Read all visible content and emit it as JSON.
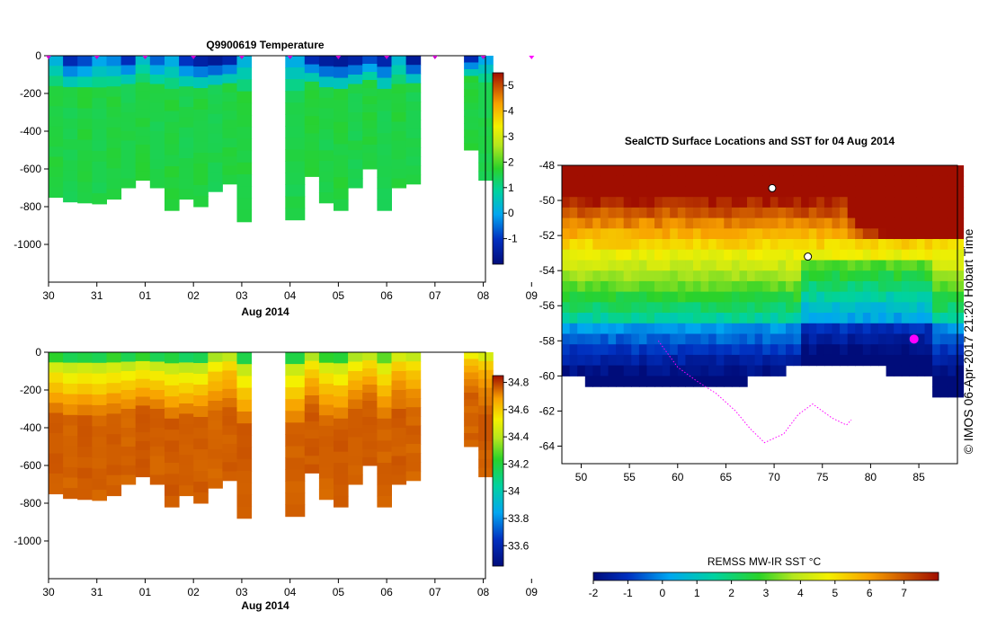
{
  "chart_data": [
    {
      "type": "heatmap",
      "title": "Q9900619  Temperature",
      "xlabel": "Aug 2014",
      "x_ticks": [
        "30",
        "31",
        "01",
        "02",
        "03",
        "04",
        "05",
        "06",
        "07",
        "08",
        "09"
      ],
      "y_ticks": [
        "0",
        "-200",
        "-400",
        "-600",
        "-800",
        "-1000"
      ],
      "ylim": [
        -1200,
        0
      ],
      "colorbar": {
        "min": -2,
        "max": 5.5,
        "ticks": [
          "-1",
          "0",
          "1",
          "2",
          "3",
          "4",
          "5"
        ]
      },
      "profiles": [
        {
          "day": 0.0,
          "bottom": -750,
          "top_temp": 0.2,
          "deep_temp": 1.6
        },
        {
          "day": 0.3,
          "bottom": -775,
          "top_temp": -1.2,
          "deep_temp": 1.5
        },
        {
          "day": 0.6,
          "bottom": -780,
          "top_temp": -0.8,
          "deep_temp": 1.6
        },
        {
          "day": 0.9,
          "bottom": -785,
          "top_temp": 0.0,
          "deep_temp": 1.5
        },
        {
          "day": 1.2,
          "bottom": -760,
          "top_temp": -0.3,
          "deep_temp": 1.6
        },
        {
          "day": 1.5,
          "bottom": -700,
          "top_temp": -1.1,
          "deep_temp": 1.5
        },
        {
          "day": 1.8,
          "bottom": -660,
          "top_temp": 0.4,
          "deep_temp": 1.6
        },
        {
          "day": 2.1,
          "bottom": -700,
          "top_temp": -0.6,
          "deep_temp": 1.5
        },
        {
          "day": 2.4,
          "bottom": -820,
          "top_temp": 0.1,
          "deep_temp": 1.6
        },
        {
          "day": 2.7,
          "bottom": -760,
          "top_temp": -1.0,
          "deep_temp": 1.5
        },
        {
          "day": 3.0,
          "bottom": -800,
          "top_temp": -1.4,
          "deep_temp": 1.6
        },
        {
          "day": 3.3,
          "bottom": -720,
          "top_temp": -1.6,
          "deep_temp": 1.5
        },
        {
          "day": 3.6,
          "bottom": -680,
          "top_temp": -1.3,
          "deep_temp": 1.6
        },
        {
          "day": 3.9,
          "bottom": -880,
          "top_temp": 0.2,
          "deep_temp": 1.6
        },
        {
          "day": 4.9,
          "bottom": -870,
          "top_temp": 0.1,
          "deep_temp": 1.5
        },
        {
          "day": 5.3,
          "bottom": -640,
          "top_temp": -1.2,
          "deep_temp": 1.6
        },
        {
          "day": 5.6,
          "bottom": -780,
          "top_temp": -1.5,
          "deep_temp": 1.5
        },
        {
          "day": 5.9,
          "bottom": -820,
          "top_temp": -1.6,
          "deep_temp": 1.6
        },
        {
          "day": 6.2,
          "bottom": -700,
          "top_temp": -1.4,
          "deep_temp": 1.5
        },
        {
          "day": 6.5,
          "bottom": -600,
          "top_temp": -0.8,
          "deep_temp": 1.6
        },
        {
          "day": 6.8,
          "bottom": -820,
          "top_temp": -1.3,
          "deep_temp": 1.5
        },
        {
          "day": 7.1,
          "bottom": -700,
          "top_temp": 0.3,
          "deep_temp": 1.6
        },
        {
          "day": 7.4,
          "bottom": -680,
          "top_temp": -1.6,
          "deep_temp": 1.5
        },
        {
          "day": 8.6,
          "bottom": -500,
          "top_temp": -1.2,
          "deep_temp": 1.6
        },
        {
          "day": 8.9,
          "bottom": -660,
          "top_temp": 0.0,
          "deep_temp": 1.5
        }
      ]
    },
    {
      "type": "heatmap",
      "title": "",
      "xlabel": "Aug 2014",
      "x_ticks": [
        "30",
        "31",
        "01",
        "02",
        "03",
        "04",
        "05",
        "06",
        "07",
        "08",
        "09"
      ],
      "y_ticks": [
        "0",
        "-200",
        "-400",
        "-600",
        "-800",
        "-1000"
      ],
      "ylim": [
        -1200,
        0
      ],
      "colorbar": {
        "min": 33.45,
        "max": 34.85,
        "ticks": [
          "33.6",
          "33.8",
          "34",
          "34.2",
          "34.4",
          "34.6",
          "34.8"
        ]
      },
      "profiles": [
        {
          "day": 0.0,
          "bottom": -750,
          "top_val": 34.15,
          "deep_val": 34.73
        },
        {
          "day": 0.3,
          "bottom": -775,
          "top_val": 34.1,
          "deep_val": 34.72
        },
        {
          "day": 0.6,
          "bottom": -780,
          "top_val": 34.12,
          "deep_val": 34.73
        },
        {
          "day": 0.9,
          "bottom": -785,
          "top_val": 34.1,
          "deep_val": 34.72
        },
        {
          "day": 1.2,
          "bottom": -760,
          "top_val": 34.15,
          "deep_val": 34.73
        },
        {
          "day": 1.5,
          "bottom": -700,
          "top_val": 34.08,
          "deep_val": 34.72
        },
        {
          "day": 1.8,
          "bottom": -660,
          "top_val": 34.15,
          "deep_val": 34.73
        },
        {
          "day": 2.1,
          "bottom": -700,
          "top_val": 34.1,
          "deep_val": 34.72
        },
        {
          "day": 2.4,
          "bottom": -820,
          "top_val": 34.12,
          "deep_val": 34.73
        },
        {
          "day": 2.7,
          "bottom": -760,
          "top_val": 34.08,
          "deep_val": 34.72
        },
        {
          "day": 3.0,
          "bottom": -800,
          "top_val": 34.1,
          "deep_val": 34.73
        },
        {
          "day": 3.3,
          "bottom": -720,
          "top_val": 34.3,
          "deep_val": 34.72
        },
        {
          "day": 3.6,
          "bottom": -680,
          "top_val": 34.35,
          "deep_val": 34.73
        },
        {
          "day": 3.9,
          "bottom": -880,
          "top_val": 34.1,
          "deep_val": 34.73
        },
        {
          "day": 4.9,
          "bottom": -870,
          "top_val": 34.12,
          "deep_val": 34.72
        },
        {
          "day": 5.3,
          "bottom": -640,
          "top_val": 34.3,
          "deep_val": 34.73
        },
        {
          "day": 5.6,
          "bottom": -780,
          "top_val": 34.15,
          "deep_val": 34.72
        },
        {
          "day": 5.9,
          "bottom": -820,
          "top_val": 34.12,
          "deep_val": 34.73
        },
        {
          "day": 6.2,
          "bottom": -700,
          "top_val": 34.3,
          "deep_val": 34.72
        },
        {
          "day": 6.5,
          "bottom": -600,
          "top_val": 34.35,
          "deep_val": 34.73
        },
        {
          "day": 6.8,
          "bottom": -820,
          "top_val": 34.2,
          "deep_val": 34.72
        },
        {
          "day": 7.1,
          "bottom": -700,
          "top_val": 34.4,
          "deep_val": 34.73
        },
        {
          "day": 7.4,
          "bottom": -680,
          "top_val": 34.35,
          "deep_val": 34.72
        },
        {
          "day": 8.6,
          "bottom": -500,
          "top_val": 34.45,
          "deep_val": 34.72
        },
        {
          "day": 8.9,
          "bottom": -660,
          "top_val": 34.4,
          "deep_val": 34.73
        }
      ]
    },
    {
      "type": "heatmap",
      "title": "SealCTD Surface Locations and SST for 04 Aug 2014",
      "x_ticks": [
        "50",
        "55",
        "60",
        "65",
        "70",
        "75",
        "80",
        "85"
      ],
      "y_ticks": [
        "-48",
        "-50",
        "-52",
        "-54",
        "-56",
        "-58",
        "-60",
        "-62",
        "-64"
      ],
      "xlim": [
        48,
        89
      ],
      "ylim": [
        -65,
        -48
      ],
      "colorbar": {
        "label": "REMSS MW-IR SST °C",
        "min": -2,
        "max": 8,
        "ticks": [
          "-2",
          "-1",
          "0",
          "1",
          "2",
          "3",
          "4",
          "5",
          "6",
          "7"
        ]
      },
      "seal_locations": [
        {
          "lon": 69.8,
          "lat": -49.3
        },
        {
          "lon": 73.5,
          "lat": -53.2
        },
        {
          "lon": 84.5,
          "lat": -57.9
        }
      ],
      "track": [
        [
          58,
          -58
        ],
        [
          60,
          -59.5
        ],
        [
          62,
          -60.3
        ],
        [
          64,
          -61
        ],
        [
          66,
          -62
        ],
        [
          67.5,
          -63
        ],
        [
          69,
          -63.8
        ],
        [
          71,
          -63.3
        ],
        [
          72.5,
          -62.2
        ],
        [
          74,
          -61.6
        ],
        [
          76,
          -62.4
        ],
        [
          77.5,
          -62.8
        ],
        [
          78,
          -62.5
        ]
      ]
    }
  ],
  "credit": "© IMOS 06-Apr-2017 21:20 Hobart Time"
}
